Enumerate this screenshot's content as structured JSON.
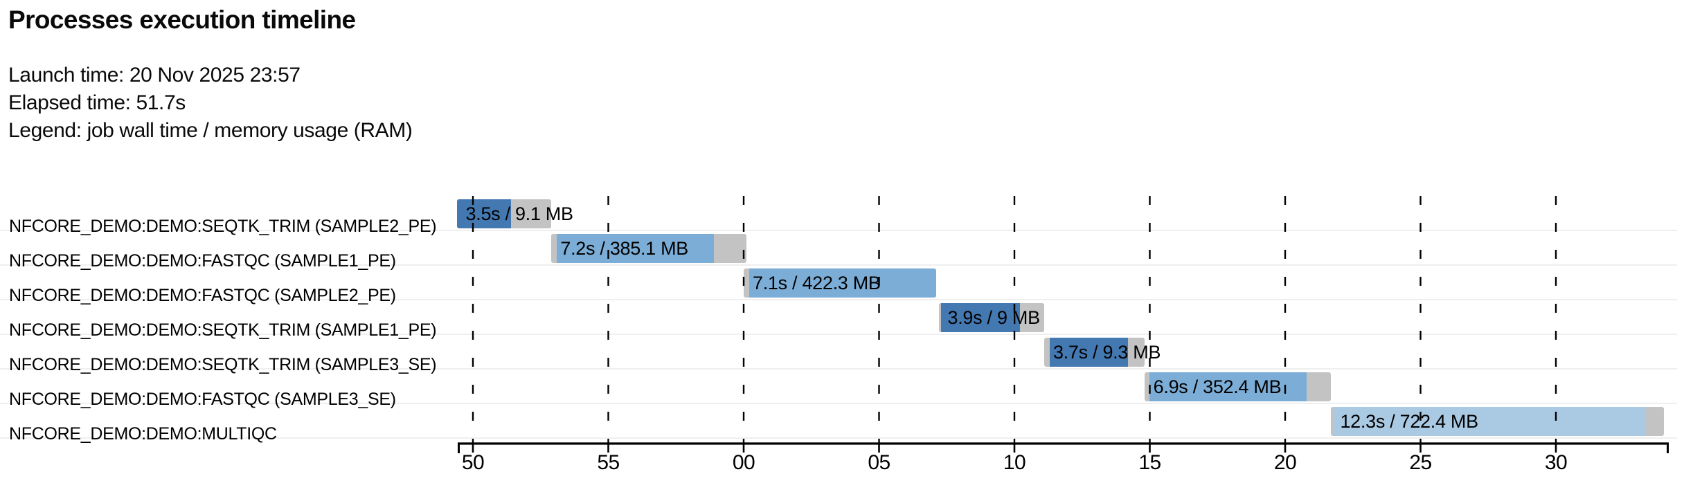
{
  "header": {
    "title": "Processes execution timeline",
    "launch": "Launch time: 20 Nov 2025 23:57",
    "elapsed": "Elapsed time: 51.7s",
    "legend": "Legend: job wall time / memory usage (RAM)"
  },
  "colors": {
    "seqtk_trim": "#4478b1",
    "fastqc": "#7cadd6",
    "multiqc": "#aac9e3",
    "overhead": "#c3c3c3",
    "row_separator": "#efefef",
    "axis": "#000000"
  },
  "chart_data": {
    "type": "bar",
    "variant": "gantt-timeline",
    "title": "Processes execution timeline",
    "legend_note": "job wall time / memory usage (RAM)",
    "x_axis": {
      "unit": "seconds (clock seconds within 23:57 → 23:58)",
      "tick_labels": [
        "50",
        "55",
        "00",
        "05",
        "10",
        "15",
        "20",
        "25",
        "30"
      ],
      "tick_seconds": [
        50,
        55,
        60,
        65,
        70,
        75,
        80,
        85,
        90
      ],
      "domain_seconds": [
        49.4,
        94.1
      ],
      "gridlines": "dashed-vertical"
    },
    "tasks": [
      {
        "process": "NFCORE_DEMO:DEMO:SEQTK_TRIM (SAMPLE2_PE)",
        "bar_label": "3.5s / 9.1 MB",
        "wall_time": "3.5s",
        "memory": "9.1 MB",
        "color": "seqtk_trim",
        "start_s": 49.4,
        "run_start_s": 49.4,
        "run_end_s": 51.4,
        "end_s": 52.9
      },
      {
        "process": "NFCORE_DEMO:DEMO:FASTQC (SAMPLE1_PE)",
        "bar_label": "7.2s / 385.1 MB",
        "wall_time": "7.2s",
        "memory": "385.1 MB",
        "color": "fastqc",
        "start_s": 52.9,
        "run_start_s": 53.1,
        "run_end_s": 58.9,
        "end_s": 60.1
      },
      {
        "process": "NFCORE_DEMO:DEMO:FASTQC (SAMPLE2_PE)",
        "bar_label": "7.1s / 422.3 MB",
        "wall_time": "7.1s",
        "memory": "422.3 MB",
        "color": "fastqc",
        "start_s": 60.0,
        "run_start_s": 60.2,
        "run_end_s": 67.1,
        "end_s": 67.1
      },
      {
        "process": "NFCORE_DEMO:DEMO:SEQTK_TRIM (SAMPLE1_PE)",
        "bar_label": "3.9s / 9 MB",
        "wall_time": "3.9s",
        "memory": "9 MB",
        "color": "seqtk_trim",
        "start_s": 67.2,
        "run_start_s": 67.3,
        "run_end_s": 70.2,
        "end_s": 71.1
      },
      {
        "process": "NFCORE_DEMO:DEMO:SEQTK_TRIM (SAMPLE3_SE)",
        "bar_label": "3.7s / 9.3 MB",
        "wall_time": "3.7s",
        "memory": "9.3 MB",
        "color": "seqtk_trim",
        "start_s": 71.1,
        "run_start_s": 71.3,
        "run_end_s": 74.2,
        "end_s": 74.8
      },
      {
        "process": "NFCORE_DEMO:DEMO:FASTQC (SAMPLE3_SE)",
        "bar_label": "6.9s / 352.4 MB",
        "wall_time": "6.9s",
        "memory": "352.4 MB",
        "color": "fastqc",
        "start_s": 74.8,
        "run_start_s": 75.0,
        "run_end_s": 80.8,
        "end_s": 81.7
      },
      {
        "process": "NFCORE_DEMO:DEMO:MULTIQC",
        "bar_label": "12.3s / 722.4 MB",
        "wall_time": "12.3s",
        "memory": "722.4 MB",
        "color": "multiqc",
        "start_s": 81.7,
        "run_start_s": 81.78,
        "run_end_s": 93.3,
        "end_s": 94.0
      }
    ]
  }
}
